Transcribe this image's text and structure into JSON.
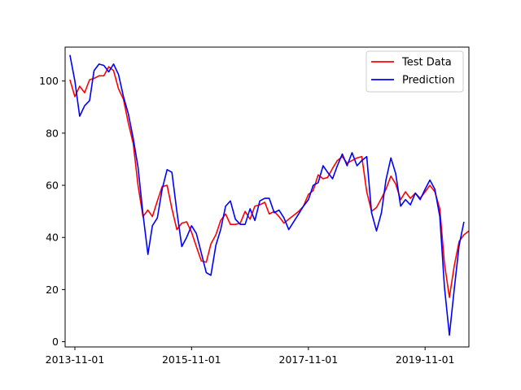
{
  "chart_data": {
    "type": "line",
    "title": "",
    "xlabel": "",
    "ylabel": "",
    "x_tick_labels": [
      "2013-11-01",
      "2015-11-01",
      "2017-11-01",
      "2019-11-01"
    ],
    "x_range": [
      "2013-09-01",
      "2020-08-01"
    ],
    "y_ticks": [
      0,
      20,
      40,
      60,
      80,
      100
    ],
    "ylim": [
      -2,
      113
    ],
    "grid": false,
    "legend_position": "top-right",
    "series": [
      {
        "name": "Test Data",
        "color": "#ff0000",
        "data": [
          [
            "2013-10-01",
            100.5
          ],
          [
            "2013-11-01",
            94
          ],
          [
            "2013-12-01",
            98
          ],
          [
            "2014-01-01",
            95.5
          ],
          [
            "2014-02-01",
            100.5
          ],
          [
            "2014-03-01",
            101
          ],
          [
            "2014-04-01",
            102
          ],
          [
            "2014-05-01",
            102
          ],
          [
            "2014-06-01",
            105.5
          ],
          [
            "2014-07-01",
            104
          ],
          [
            "2014-08-01",
            97
          ],
          [
            "2014-09-01",
            93
          ],
          [
            "2014-10-01",
            84
          ],
          [
            "2014-11-01",
            76
          ],
          [
            "2014-12-01",
            60
          ],
          [
            "2015-01-01",
            48
          ],
          [
            "2015-02-01",
            50.5
          ],
          [
            "2015-03-01",
            48
          ],
          [
            "2015-04-01",
            54
          ],
          [
            "2015-05-01",
            59.5
          ],
          [
            "2015-06-01",
            60
          ],
          [
            "2015-07-01",
            51
          ],
          [
            "2015-08-01",
            43
          ],
          [
            "2015-09-01",
            45.5
          ],
          [
            "2015-10-01",
            46
          ],
          [
            "2015-11-01",
            42
          ],
          [
            "2015-12-01",
            36.5
          ],
          [
            "2016-01-01",
            31
          ],
          [
            "2016-02-01",
            30.5
          ],
          [
            "2016-03-01",
            37.5
          ],
          [
            "2016-04-01",
            41
          ],
          [
            "2016-05-01",
            46.5
          ],
          [
            "2016-06-01",
            49
          ],
          [
            "2016-07-01",
            45
          ],
          [
            "2016-08-01",
            45
          ],
          [
            "2016-09-01",
            45.5
          ],
          [
            "2016-10-01",
            50
          ],
          [
            "2016-11-01",
            47
          ],
          [
            "2016-12-01",
            52
          ],
          [
            "2017-01-01",
            52.5
          ],
          [
            "2017-02-01",
            53.5
          ],
          [
            "2017-03-01",
            49
          ],
          [
            "2017-04-01",
            50
          ],
          [
            "2017-05-01",
            48
          ],
          [
            "2017-06-01",
            45.5
          ],
          [
            "2017-07-01",
            47
          ],
          [
            "2017-08-01",
            48.5
          ],
          [
            "2017-09-01",
            50
          ],
          [
            "2017-10-01",
            52
          ],
          [
            "2017-11-01",
            56.5
          ],
          [
            "2017-12-01",
            58
          ],
          [
            "2018-01-01",
            64
          ],
          [
            "2018-02-01",
            62.5
          ],
          [
            "2018-03-01",
            63
          ],
          [
            "2018-04-01",
            66.5
          ],
          [
            "2018-05-01",
            69.5
          ],
          [
            "2018-06-01",
            71
          ],
          [
            "2018-07-01",
            68.5
          ],
          [
            "2018-08-01",
            69.5
          ],
          [
            "2018-09-01",
            70.5
          ],
          [
            "2018-10-01",
            71
          ],
          [
            "2018-11-01",
            57.5
          ],
          [
            "2018-12-01",
            50
          ],
          [
            "2019-01-01",
            51.5
          ],
          [
            "2019-02-01",
            55
          ],
          [
            "2019-03-01",
            58.5
          ],
          [
            "2019-04-01",
            63.5
          ],
          [
            "2019-05-01",
            60.5
          ],
          [
            "2019-06-01",
            54.5
          ],
          [
            "2019-07-01",
            57.5
          ],
          [
            "2019-08-01",
            55
          ],
          [
            "2019-09-01",
            57
          ],
          [
            "2019-10-01",
            55
          ],
          [
            "2019-11-01",
            57.5
          ],
          [
            "2019-12-01",
            60
          ],
          [
            "2020-01-01",
            57.5
          ],
          [
            "2020-02-01",
            51
          ],
          [
            "2020-03-01",
            30
          ],
          [
            "2020-04-01",
            17
          ],
          [
            "2020-05-01",
            29
          ],
          [
            "2020-06-01",
            38.5
          ],
          [
            "2020-07-01",
            41
          ],
          [
            "2020-08-01",
            42.5
          ]
        ]
      },
      {
        "name": "Prediction",
        "color": "#0000ff",
        "data": [
          [
            "2013-10-01",
            110
          ],
          [
            "2013-11-01",
            100
          ],
          [
            "2013-12-01",
            86.5
          ],
          [
            "2014-01-01",
            90.5
          ],
          [
            "2014-02-01",
            92.5
          ],
          [
            "2014-03-01",
            104
          ],
          [
            "2014-04-01",
            106.5
          ],
          [
            "2014-05-01",
            106
          ],
          [
            "2014-06-01",
            103.5
          ],
          [
            "2014-07-01",
            106.5
          ],
          [
            "2014-08-01",
            102.5
          ],
          [
            "2014-09-01",
            94
          ],
          [
            "2014-10-01",
            87.5
          ],
          [
            "2014-11-01",
            78
          ],
          [
            "2014-12-01",
            67
          ],
          [
            "2015-01-01",
            49
          ],
          [
            "2015-02-01",
            33.5
          ],
          [
            "2015-03-01",
            44.5
          ],
          [
            "2015-04-01",
            47.5
          ],
          [
            "2015-05-01",
            58.5
          ],
          [
            "2015-06-01",
            66
          ],
          [
            "2015-07-01",
            65
          ],
          [
            "2015-08-01",
            50
          ],
          [
            "2015-09-01",
            36.5
          ],
          [
            "2015-10-01",
            40
          ],
          [
            "2015-11-01",
            44.5
          ],
          [
            "2015-12-01",
            41.5
          ],
          [
            "2016-01-01",
            34
          ],
          [
            "2016-02-01",
            26.5
          ],
          [
            "2016-03-01",
            25.5
          ],
          [
            "2016-04-01",
            37
          ],
          [
            "2016-05-01",
            43
          ],
          [
            "2016-06-01",
            52
          ],
          [
            "2016-07-01",
            54
          ],
          [
            "2016-08-01",
            47
          ],
          [
            "2016-09-01",
            45
          ],
          [
            "2016-10-01",
            45
          ],
          [
            "2016-11-01",
            51
          ],
          [
            "2016-12-01",
            46.5
          ],
          [
            "2017-01-01",
            54
          ],
          [
            "2017-02-01",
            55
          ],
          [
            "2017-03-01",
            55
          ],
          [
            "2017-04-01",
            49.5
          ],
          [
            "2017-05-01",
            50.5
          ],
          [
            "2017-06-01",
            47.5
          ],
          [
            "2017-07-01",
            43
          ],
          [
            "2017-08-01",
            46
          ],
          [
            "2017-09-01",
            49
          ],
          [
            "2017-10-01",
            52
          ],
          [
            "2017-11-01",
            54.5
          ],
          [
            "2017-12-01",
            60
          ],
          [
            "2018-01-01",
            61
          ],
          [
            "2018-02-01",
            67.5
          ],
          [
            "2018-03-01",
            65
          ],
          [
            "2018-04-01",
            62.5
          ],
          [
            "2018-05-01",
            67.5
          ],
          [
            "2018-06-01",
            72
          ],
          [
            "2018-07-01",
            67.5
          ],
          [
            "2018-08-01",
            72.5
          ],
          [
            "2018-09-01",
            67.5
          ],
          [
            "2018-10-01",
            69.5
          ],
          [
            "2018-11-01",
            71
          ],
          [
            "2018-12-01",
            49.5
          ],
          [
            "2019-01-01",
            42.5
          ],
          [
            "2019-02-01",
            49.5
          ],
          [
            "2019-03-01",
            62
          ],
          [
            "2019-04-01",
            70.5
          ],
          [
            "2019-05-01",
            64.5
          ],
          [
            "2019-06-01",
            52
          ],
          [
            "2019-07-01",
            54.5
          ],
          [
            "2019-08-01",
            52.5
          ],
          [
            "2019-09-01",
            57
          ],
          [
            "2019-10-01",
            54.5
          ],
          [
            "2019-11-01",
            58.5
          ],
          [
            "2019-12-01",
            62
          ],
          [
            "2020-01-01",
            58.5
          ],
          [
            "2020-02-01",
            48
          ],
          [
            "2020-03-01",
            21
          ],
          [
            "2020-04-01",
            2.5
          ],
          [
            "2020-05-01",
            20
          ],
          [
            "2020-06-01",
            37
          ],
          [
            "2020-07-01",
            46
          ]
        ]
      }
    ]
  }
}
